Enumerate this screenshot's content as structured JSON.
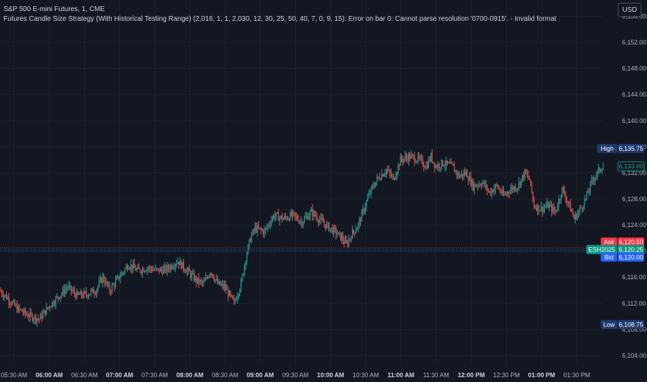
{
  "header": {
    "symbol_line": "S&P 500 E-mini Futures, 1, CME",
    "strategy_line": "Futures Candle Size Strategy (With Historical Testing Range) (2,016, 1, 1, 2,030, 12, 30, 25, 50, 40, 7, 0, 9, 15): Error on bar 0: Cannot parse resolution '0700-0915'. - Invalid format"
  },
  "currency_button": "USD",
  "colors": {
    "background": "#131722",
    "grid": "#1e222d",
    "up": "#26a69a",
    "down": "#ef5350",
    "ask": "#f23645",
    "bid": "#2962ff",
    "last": "#089981",
    "high_low_badge": "#1e3a6e"
  },
  "chart_data": {
    "type": "candlestick",
    "y_axis": {
      "range": [
        6102.5,
        6158.5
      ],
      "ticks": [
        {
          "value": 6156,
          "label": "6,156.00"
        },
        {
          "value": 6152,
          "label": "6,152.00"
        },
        {
          "value": 6148,
          "label": "6,148.00"
        },
        {
          "value": 6144,
          "label": "6,144.00"
        },
        {
          "value": 6140,
          "label": "6,140.00"
        },
        {
          "value": 6136,
          "label": "6,136.00"
        },
        {
          "value": 6132,
          "label": "6,132.00"
        },
        {
          "value": 6128,
          "label": "6,128.00"
        },
        {
          "value": 6124,
          "label": "6,124.00"
        },
        {
          "value": 6120,
          "label": "6,120.00"
        },
        {
          "value": 6116,
          "label": "6,116.00"
        },
        {
          "value": 6112,
          "label": "6,112.00"
        },
        {
          "value": 6108,
          "label": "6,108.00"
        },
        {
          "value": 6104,
          "label": "6,104.00"
        }
      ]
    },
    "x_axis": {
      "range": [
        "05:18",
        "13:52"
      ],
      "ticks": [
        {
          "time": "05:30",
          "label": "05:30 AM",
          "bold": false
        },
        {
          "time": "06:00",
          "label": "06:00 AM",
          "bold": true
        },
        {
          "time": "06:30",
          "label": "06:30 AM",
          "bold": false
        },
        {
          "time": "07:00",
          "label": "07:00 AM",
          "bold": true
        },
        {
          "time": "07:30",
          "label": "07:30 AM",
          "bold": false
        },
        {
          "time": "08:00",
          "label": "08:00 AM",
          "bold": true
        },
        {
          "time": "08:30",
          "label": "08:30 AM",
          "bold": false
        },
        {
          "time": "09:00",
          "label": "09:00 AM",
          "bold": true
        },
        {
          "time": "09:30",
          "label": "09:30 AM",
          "bold": false
        },
        {
          "time": "10:00",
          "label": "10:00 AM",
          "bold": true
        },
        {
          "time": "10:30",
          "label": "10:30 AM",
          "bold": false
        },
        {
          "time": "11:00",
          "label": "11:00 AM",
          "bold": true
        },
        {
          "time": "11:30",
          "label": "11:30 AM",
          "bold": false
        },
        {
          "time": "12:00",
          "label": "12:00 PM",
          "bold": true
        },
        {
          "time": "12:30",
          "label": "12:30 PM",
          "bold": false
        },
        {
          "time": "13:00",
          "label": "01:00 PM",
          "bold": true
        },
        {
          "time": "13:30",
          "label": "01:30 PM",
          "bold": false
        }
      ]
    },
    "price_path": [
      [
        "05:18",
        6114.0
      ],
      [
        "05:25",
        6112.8
      ],
      [
        "05:33",
        6111.2
      ],
      [
        "05:42",
        6110.2
      ],
      [
        "05:52",
        6109.6
      ],
      [
        "06:00",
        6111.5
      ],
      [
        "06:08",
        6113.0
      ],
      [
        "06:16",
        6114.5
      ],
      [
        "06:24",
        6113.2
      ],
      [
        "06:32",
        6113.4
      ],
      [
        "06:40",
        6114.0
      ],
      [
        "06:46",
        6116.0
      ],
      [
        "06:52",
        6114.0
      ],
      [
        "07:00",
        6116.0
      ],
      [
        "07:08",
        6118.0
      ],
      [
        "07:16",
        6117.0
      ],
      [
        "07:24",
        6117.5
      ],
      [
        "07:32",
        6117.0
      ],
      [
        "07:40",
        6117.2
      ],
      [
        "07:50",
        6118.5
      ],
      [
        "07:58",
        6117.0
      ],
      [
        "08:06",
        6115.5
      ],
      [
        "08:12",
        6115.0
      ],
      [
        "08:18",
        6117.0
      ],
      [
        "08:24",
        6115.0
      ],
      [
        "08:30",
        6114.5
      ],
      [
        "08:38",
        6112.0
      ],
      [
        "08:44",
        6115.0
      ],
      [
        "08:48",
        6119.0
      ],
      [
        "08:52",
        6122.0
      ],
      [
        "08:56",
        6123.5
      ],
      [
        "09:04",
        6123.0
      ],
      [
        "09:12",
        6125.5
      ],
      [
        "09:20",
        6125.0
      ],
      [
        "09:28",
        6125.5
      ],
      [
        "09:36",
        6124.5
      ],
      [
        "09:44",
        6126.0
      ],
      [
        "09:50",
        6125.0
      ],
      [
        "09:56",
        6124.0
      ],
      [
        "10:04",
        6123.0
      ],
      [
        "10:10",
        6122.0
      ],
      [
        "10:14",
        6121.0
      ],
      [
        "10:18",
        6122.5
      ],
      [
        "10:24",
        6124.0
      ],
      [
        "10:28",
        6126.0
      ],
      [
        "10:34",
        6129.0
      ],
      [
        "10:40",
        6131.0
      ],
      [
        "10:48",
        6132.5
      ],
      [
        "10:54",
        6131.0
      ],
      [
        "11:00",
        6134.0
      ],
      [
        "11:08",
        6134.5
      ],
      [
        "11:16",
        6134.0
      ],
      [
        "11:22",
        6133.0
      ],
      [
        "11:26",
        6134.5
      ],
      [
        "11:30",
        6133.0
      ],
      [
        "11:36",
        6133.5
      ],
      [
        "11:44",
        6133.0
      ],
      [
        "11:50",
        6131.5
      ],
      [
        "11:56",
        6132.0
      ],
      [
        "12:02",
        6130.0
      ],
      [
        "12:10",
        6130.5
      ],
      [
        "12:16",
        6129.0
      ],
      [
        "12:22",
        6130.0
      ],
      [
        "12:28",
        6128.5
      ],
      [
        "12:34",
        6129.5
      ],
      [
        "12:40",
        6130.0
      ],
      [
        "12:46",
        6132.0
      ],
      [
        "12:50",
        6131.0
      ],
      [
        "12:54",
        6127.0
      ],
      [
        "13:00",
        6126.5
      ],
      [
        "13:06",
        6127.0
      ],
      [
        "13:12",
        6126.0
      ],
      [
        "13:18",
        6129.5
      ],
      [
        "13:24",
        6127.0
      ],
      [
        "13:28",
        6125.0
      ],
      [
        "13:32",
        6126.0
      ],
      [
        "13:38",
        6128.0
      ],
      [
        "13:44",
        6131.0
      ],
      [
        "13:52",
        6133.0
      ]
    ],
    "candle_interval_minutes": 1,
    "price_lines": {
      "ask": 6120.5,
      "bid": 6120.0,
      "last": 6120.25
    },
    "badges": [
      {
        "name": "high",
        "tag": "High",
        "value": "6,135.75",
        "price": 6135.75
      },
      {
        "name": "last-close",
        "tag": "",
        "value": "6,133.00",
        "price": 6133.0
      },
      {
        "name": "ask",
        "tag": "Ask",
        "value": "6,120.50",
        "price": 6121.4
      },
      {
        "name": "contract",
        "tag": "ESH2025",
        "value": "6,120.25",
        "price": 6120.25
      },
      {
        "name": "bid",
        "tag": "Bid",
        "value": "6,120.00",
        "price": 6119.1
      },
      {
        "name": "low",
        "tag": "Low",
        "value": "6,108.75",
        "price": 6108.75
      }
    ]
  }
}
